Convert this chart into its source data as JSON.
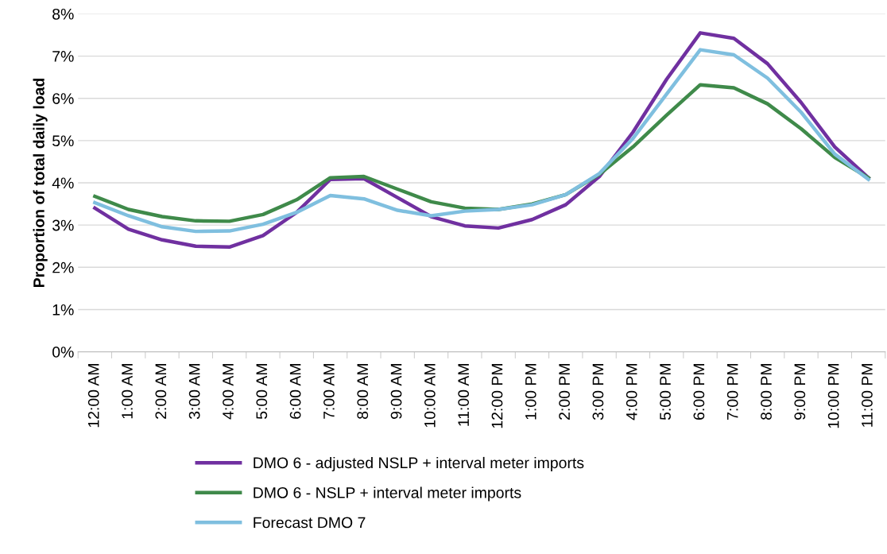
{
  "chart_data": {
    "type": "line",
    "ylabel": "Proportion of total daily load",
    "categories": [
      "12:00 AM",
      "1:00 AM",
      "2:00 AM",
      "3:00 AM",
      "4:00 AM",
      "5:00 AM",
      "6:00 AM",
      "7:00 AM",
      "8:00 AM",
      "9:00 AM",
      "10:00 AM",
      "11:00 AM",
      "12:00 PM",
      "1:00 PM",
      "2:00 PM",
      "3:00 PM",
      "4:00 PM",
      "5:00 PM",
      "6:00 PM",
      "7:00 PM",
      "8:00 PM",
      "9:00 PM",
      "10:00 PM",
      "11:00 PM"
    ],
    "series": [
      {
        "name": "DMO 6 - adjusted NSLP + interval meter imports",
        "color": "#7030a0",
        "values": [
          3.4,
          2.9,
          2.65,
          2.5,
          2.48,
          2.75,
          3.3,
          4.08,
          4.1,
          3.65,
          3.2,
          2.98,
          2.93,
          3.13,
          3.48,
          4.15,
          5.2,
          6.45,
          7.55,
          7.42,
          6.82,
          5.9,
          4.85,
          4.12
        ]
      },
      {
        "name": "DMO 6 - NSLP + interval meter imports",
        "color": "#3f8a4a",
        "values": [
          3.68,
          3.37,
          3.2,
          3.1,
          3.09,
          3.25,
          3.6,
          4.12,
          4.15,
          3.85,
          3.55,
          3.4,
          3.37,
          3.5,
          3.72,
          4.2,
          4.85,
          5.6,
          6.32,
          6.25,
          5.87,
          5.28,
          4.6,
          4.12
        ]
      },
      {
        "name": "Forecast DMO 7",
        "color": "#7fbfdf",
        "values": [
          3.53,
          3.22,
          2.96,
          2.85,
          2.86,
          3.02,
          3.3,
          3.7,
          3.62,
          3.35,
          3.22,
          3.33,
          3.37,
          3.48,
          3.72,
          4.22,
          5.05,
          6.1,
          7.15,
          7.03,
          6.48,
          5.67,
          4.68,
          4.08
        ]
      }
    ],
    "ylim": [
      0,
      8
    ],
    "yticks": [
      {
        "value": 0,
        "label": "0%"
      },
      {
        "value": 1,
        "label": "1%"
      },
      {
        "value": 2,
        "label": "2%"
      },
      {
        "value": 3,
        "label": "3%"
      },
      {
        "value": 4,
        "label": "4%"
      },
      {
        "value": 5,
        "label": "5%"
      },
      {
        "value": 6,
        "label": "6%"
      },
      {
        "value": 7,
        "label": "7%"
      },
      {
        "value": 8,
        "label": "8%"
      }
    ],
    "grid": "y",
    "legend": "bottom",
    "marker": "none",
    "line_style": "solid"
  }
}
